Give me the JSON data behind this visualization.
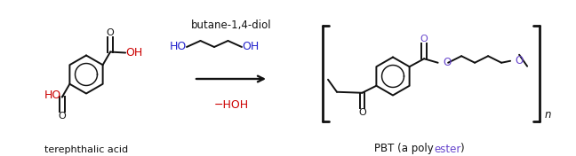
{
  "bg_color": "#ffffff",
  "black": "#111111",
  "red": "#cc0000",
  "blue": "#2222cc",
  "purple": "#6644cc",
  "figsize": [
    6.48,
    1.76
  ],
  "dpi": 100,
  "label_terephthalic": "terephthalic acid",
  "label_butane": "butane-1,4-diol",
  "label_hoh": "−HOH",
  "label_n": "n"
}
